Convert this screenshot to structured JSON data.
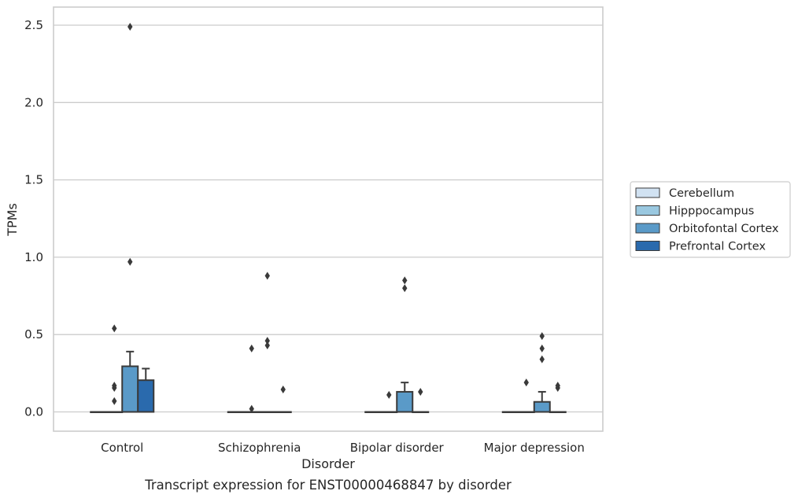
{
  "chart_data": {
    "type": "box",
    "caption": "Transcript expression for ENST00000468847 by disorder",
    "xlabel": "Disorder",
    "ylabel": "TPMs",
    "ylim": [
      -0.12,
      2.62
    ],
    "yticks": [
      0.0,
      0.5,
      1.0,
      1.5,
      2.0,
      2.5
    ],
    "ytick_labels": [
      "0.0",
      "0.5",
      "1.0",
      "1.5",
      "2.0",
      "2.5"
    ],
    "grid": "y",
    "legend_position": "right",
    "categories": [
      "Control",
      "Schizophrenia",
      "Bipolar disorder",
      "Major depression"
    ],
    "series": [
      {
        "name": "Cerebellum",
        "color": "#d1e2f2",
        "boxes": [
          {
            "q1": 0,
            "median": 0,
            "q3": 0,
            "whisker_low": 0,
            "whisker_high": 0,
            "outliers": []
          },
          {
            "q1": 0,
            "median": 0,
            "q3": 0,
            "whisker_low": 0,
            "whisker_high": 0,
            "outliers": []
          },
          {
            "q1": 0,
            "median": 0,
            "q3": 0,
            "whisker_low": 0,
            "whisker_high": 0,
            "outliers": []
          },
          {
            "q1": 0,
            "median": 0,
            "q3": 0,
            "whisker_low": 0,
            "whisker_high": 0,
            "outliers": []
          }
        ]
      },
      {
        "name": "Hipppocampus",
        "color": "#9ac8e0",
        "boxes": [
          {
            "q1": 0,
            "median": 0,
            "q3": 0,
            "whisker_low": 0,
            "whisker_high": 0,
            "outliers": [
              0.17,
              0.54,
              0.155,
              0.07
            ]
          },
          {
            "q1": 0,
            "median": 0,
            "q3": 0,
            "whisker_low": 0,
            "whisker_high": 0,
            "outliers": [
              0.41,
              0.02
            ]
          },
          {
            "q1": 0,
            "median": 0,
            "q3": 0,
            "whisker_low": 0,
            "whisker_high": 0,
            "outliers": [
              0.11
            ]
          },
          {
            "q1": 0,
            "median": 0,
            "q3": 0,
            "whisker_low": 0,
            "whisker_high": 0,
            "outliers": [
              0.19
            ]
          }
        ]
      },
      {
        "name": "Orbitofontal Cortex",
        "color": "#5a9ac8",
        "boxes": [
          {
            "q1": 0,
            "median": 0,
            "q3": 0.295,
            "whisker_low": 0,
            "whisker_high": 0.39,
            "outliers": [
              2.49,
              0.97
            ]
          },
          {
            "q1": 0,
            "median": 0,
            "q3": 0,
            "whisker_low": 0,
            "whisker_high": 0,
            "outliers": [
              0.88,
              0.46,
              0.43
            ]
          },
          {
            "q1": 0,
            "median": 0,
            "q3": 0.13,
            "whisker_low": 0,
            "whisker_high": 0.19,
            "outliers": [
              0.85,
              0.8
            ]
          },
          {
            "q1": 0,
            "median": 0,
            "q3": 0.065,
            "whisker_low": 0,
            "whisker_high": 0.13,
            "outliers": [
              0.49,
              0.41,
              0.34
            ]
          }
        ]
      },
      {
        "name": "Prefrontal Cortex",
        "color": "#2a6aad",
        "boxes": [
          {
            "q1": 0,
            "median": 0,
            "q3": 0.205,
            "whisker_low": 0,
            "whisker_high": 0.28,
            "outliers": []
          },
          {
            "q1": 0,
            "median": 0,
            "q3": 0,
            "whisker_low": 0,
            "whisker_high": 0,
            "outliers": [
              0.145
            ]
          },
          {
            "q1": 0,
            "median": 0,
            "q3": 0,
            "whisker_low": 0,
            "whisker_high": 0,
            "outliers": [
              0.13
            ]
          },
          {
            "q1": 0,
            "median": 0,
            "q3": 0,
            "whisker_low": 0,
            "whisker_high": 0,
            "outliers": [
              0.17,
              0.155
            ]
          }
        ]
      }
    ]
  }
}
